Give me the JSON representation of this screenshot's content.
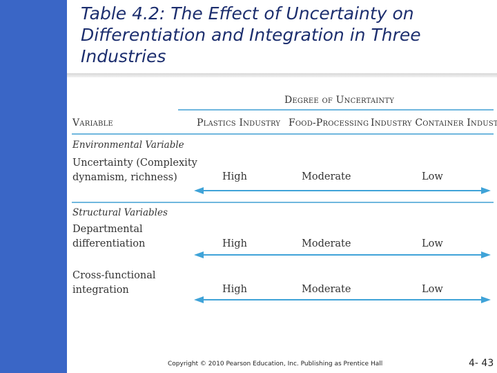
{
  "slide": {
    "title": "Table 4.2: The Effect of Uncertainty on Differentiation and Integration in Three Industries",
    "footer": "Copyright © 2010 Pearson Education, Inc. Publishing as Prentice Hall",
    "page_number": "4- 43"
  },
  "table": {
    "group_header": "Degree of Uncertainty",
    "columns": {
      "variable": "Variable",
      "plastics": "Plastics Industry",
      "food": "Food-Processing",
      "container": "Industry Container Industry"
    },
    "environmental_heading": "Environmental Variable",
    "structural_heading": "Structural Variables",
    "rows": [
      {
        "label_line1": "Uncertainty (Complexity",
        "label_line2": "dynamism, richness)",
        "high": "High",
        "moderate": "Moderate",
        "low": "Low"
      },
      {
        "label_line1": "Departmental",
        "label_line2": "differentiation",
        "high": "High",
        "moderate": "Moderate",
        "low": "Low"
      },
      {
        "label_line1": "Cross-functional",
        "label_line2": "integration",
        "high": "High",
        "moderate": "Moderate",
        "low": "Low"
      }
    ]
  },
  "colors": {
    "sidebar": "#3a66c6",
    "rule_and_arrow": "#3fa3d8",
    "title": "#1c2e6e"
  }
}
